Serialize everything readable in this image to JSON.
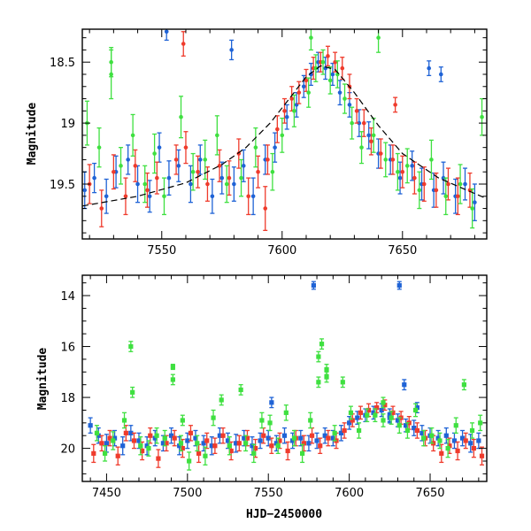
{
  "chart_data": [
    {
      "type": "scatter",
      "panel": "top",
      "xlabel": "",
      "ylabel": "Magnitude",
      "xlim": [
        7517,
        7685
      ],
      "ylim": [
        19.95,
        18.23
      ],
      "y_inverted": true,
      "xticks_major": [
        7550,
        7600,
        7650
      ],
      "xtick_labels": [
        "7550",
        "7600",
        "7650"
      ],
      "yticks_major": [
        18.5,
        19,
        19.5
      ],
      "ytick_labels": [
        "18.5",
        "19",
        "19.5"
      ],
      "colors": {
        "blue": "#1f63d6",
        "red": "#ef3b2c",
        "green": "#3fe040",
        "model": "#000000"
      },
      "model_curve": {
        "style": "dashed",
        "x": [
          7517,
          7540,
          7560,
          7575,
          7585,
          7595,
          7603,
          7610,
          7616,
          7622,
          7630,
          7640,
          7650,
          7665,
          7685
        ],
        "y": [
          19.68,
          19.6,
          19.49,
          19.34,
          19.2,
          19.0,
          18.8,
          18.62,
          18.53,
          18.56,
          18.75,
          19.02,
          19.25,
          19.45,
          19.62
        ]
      },
      "series": [
        {
          "color_key": "blue",
          "x": [
            7518,
            7522,
            7527,
            7531,
            7536,
            7540,
            7545,
            7549,
            7553,
            7557,
            7562,
            7566,
            7571,
            7575,
            7580,
            7584,
            7588,
            7593,
            7597,
            7602,
            7606,
            7609,
            7612,
            7615,
            7618,
            7621,
            7624,
            7628,
            7632,
            7636,
            7640,
            7645,
            7649,
            7654,
            7658,
            7663,
            7667,
            7672,
            7676,
            7680,
            7552,
            7579,
            7661,
            7666
          ],
          "y": [
            19.55,
            19.45,
            19.6,
            19.4,
            19.3,
            19.5,
            19.6,
            19.2,
            19.45,
            19.35,
            19.5,
            19.3,
            19.6,
            19.45,
            19.5,
            19.35,
            19.6,
            19.3,
            19.2,
            18.95,
            18.85,
            18.7,
            18.6,
            18.5,
            18.55,
            18.6,
            18.75,
            18.85,
            19.0,
            19.1,
            19.25,
            19.3,
            19.45,
            19.35,
            19.5,
            19.55,
            19.45,
            19.6,
            19.5,
            19.65,
            18.25,
            18.4,
            18.55,
            18.6
          ],
          "err": [
            0.15,
            0.12,
            0.14,
            0.13,
            0.12,
            0.15,
            0.13,
            0.12,
            0.14,
            0.13,
            0.15,
            0.12,
            0.14,
            0.13,
            0.14,
            0.13,
            0.15,
            0.12,
            0.12,
            0.1,
            0.1,
            0.09,
            0.09,
            0.08,
            0.09,
            0.09,
            0.1,
            0.1,
            0.11,
            0.11,
            0.12,
            0.12,
            0.13,
            0.12,
            0.13,
            0.14,
            0.13,
            0.14,
            0.13,
            0.15,
            0.07,
            0.08,
            0.06,
            0.06
          ]
        },
        {
          "color_key": "red",
          "x": [
            7520,
            7525,
            7530,
            7535,
            7539,
            7544,
            7548,
            7556,
            7560,
            7565,
            7569,
            7574,
            7578,
            7582,
            7586,
            7590,
            7594,
            7598,
            7601,
            7604,
            7607,
            7610,
            7613,
            7616,
            7619,
            7622,
            7625,
            7628,
            7631,
            7634,
            7637,
            7641,
            7646,
            7650,
            7655,
            7659,
            7664,
            7669,
            7673,
            7678,
            7559,
            7593,
            7647
          ],
          "y": [
            19.5,
            19.7,
            19.4,
            19.6,
            19.35,
            19.55,
            19.45,
            19.3,
            19.2,
            19.4,
            19.5,
            19.35,
            19.45,
            19.25,
            19.6,
            19.4,
            19.3,
            19.05,
            18.9,
            18.8,
            18.75,
            18.65,
            18.55,
            18.5,
            18.45,
            18.5,
            18.55,
            18.7,
            18.9,
            19.0,
            19.15,
            19.25,
            19.3,
            19.4,
            19.45,
            19.5,
            19.55,
            19.5,
            19.6,
            19.55,
            18.35,
            19.7,
            18.85
          ],
          "err": [
            0.16,
            0.15,
            0.14,
            0.15,
            0.13,
            0.14,
            0.13,
            0.12,
            0.13,
            0.13,
            0.14,
            0.13,
            0.14,
            0.12,
            0.15,
            0.13,
            0.12,
            0.11,
            0.1,
            0.1,
            0.09,
            0.09,
            0.09,
            0.08,
            0.08,
            0.08,
            0.09,
            0.1,
            0.1,
            0.11,
            0.11,
            0.12,
            0.12,
            0.13,
            0.13,
            0.14,
            0.14,
            0.13,
            0.15,
            0.14,
            0.1,
            0.18,
            0.06
          ]
        },
        {
          "color_key": "green",
          "x": [
            7519,
            7524,
            7529,
            7533,
            7538,
            7543,
            7547,
            7551,
            7558,
            7563,
            7568,
            7573,
            7577,
            7583,
            7589,
            7596,
            7600,
            7605,
            7611,
            7614,
            7617,
            7620,
            7623,
            7626,
            7629,
            7633,
            7638,
            7643,
            7648,
            7652,
            7657,
            7662,
            7668,
            7674,
            7679,
            7683,
            7529,
            7640,
            7612
          ],
          "y": [
            19.0,
            19.2,
            18.6,
            19.35,
            19.1,
            19.5,
            19.25,
            19.6,
            18.95,
            19.4,
            19.3,
            19.1,
            19.5,
            19.45,
            19.2,
            19.4,
            19.1,
            18.9,
            18.75,
            18.55,
            18.5,
            18.65,
            18.6,
            18.8,
            19.0,
            19.2,
            19.1,
            19.3,
            19.4,
            19.35,
            19.55,
            19.3,
            19.6,
            19.5,
            19.7,
            18.95,
            18.5,
            18.3,
            18.3
          ],
          "err": [
            0.18,
            0.16,
            0.2,
            0.15,
            0.17,
            0.15,
            0.16,
            0.15,
            0.17,
            0.15,
            0.16,
            0.16,
            0.15,
            0.15,
            0.16,
            0.15,
            0.14,
            0.13,
            0.12,
            0.11,
            0.1,
            0.11,
            0.11,
            0.12,
            0.13,
            0.13,
            0.14,
            0.14,
            0.15,
            0.14,
            0.15,
            0.16,
            0.15,
            0.16,
            0.16,
            0.15,
            0.12,
            0.12,
            0.1
          ]
        }
      ]
    },
    {
      "type": "scatter",
      "panel": "bottom",
      "xlabel": "HJD−2450000",
      "ylabel": "Magnitude",
      "xlim": [
        7435,
        7685
      ],
      "ylim": [
        21.3,
        13.2
      ],
      "y_inverted": true,
      "xticks_major": [
        7450,
        7500,
        7550,
        7600,
        7650
      ],
      "xtick_labels": [
        "7450",
        "7500",
        "7550",
        "7600",
        "7650"
      ],
      "yticks_major": [
        14,
        16,
        18,
        20
      ],
      "ytick_labels": [
        "14",
        "16",
        "18",
        "20"
      ],
      "colors": {
        "blue": "#1f63d6",
        "red": "#ef3b2c",
        "green": "#3fe040"
      },
      "series": [
        {
          "color_key": "blue",
          "x": [
            7440,
            7445,
            7450,
            7455,
            7460,
            7465,
            7470,
            7475,
            7480,
            7485,
            7490,
            7495,
            7500,
            7505,
            7510,
            7515,
            7520,
            7525,
            7530,
            7535,
            7540,
            7545,
            7550,
            7555,
            7560,
            7565,
            7570,
            7575,
            7580,
            7585,
            7590,
            7595,
            7600,
            7605,
            7610,
            7615,
            7620,
            7625,
            7630,
            7635,
            7640,
            7645,
            7650,
            7655,
            7660,
            7665,
            7670,
            7675,
            7680,
            7578,
            7631,
            7552,
            7625,
            7634,
            7642
          ],
          "y": [
            19.1,
            19.5,
            19.8,
            19.6,
            19.9,
            19.4,
            19.7,
            19.9,
            19.6,
            19.8,
            19.5,
            19.9,
            19.7,
            19.6,
            19.8,
            19.9,
            19.5,
            19.7,
            19.8,
            19.6,
            19.9,
            19.7,
            19.6,
            19.8,
            19.5,
            19.7,
            19.6,
            19.8,
            19.7,
            19.5,
            19.6,
            19.4,
            19.0,
            18.8,
            18.7,
            18.6,
            18.5,
            18.7,
            18.9,
            19.1,
            19.2,
            19.4,
            19.5,
            19.6,
            19.5,
            19.7,
            19.6,
            19.8,
            19.7,
            13.6,
            13.6,
            18.2,
            18.8,
            17.5,
            18.4
          ],
          "err": [
            0.3,
            0.3,
            0.35,
            0.3,
            0.35,
            0.3,
            0.3,
            0.35,
            0.3,
            0.3,
            0.3,
            0.35,
            0.3,
            0.3,
            0.3,
            0.35,
            0.3,
            0.3,
            0.35,
            0.3,
            0.35,
            0.3,
            0.3,
            0.3,
            0.3,
            0.3,
            0.3,
            0.3,
            0.3,
            0.3,
            0.3,
            0.3,
            0.25,
            0.25,
            0.25,
            0.25,
            0.25,
            0.25,
            0.25,
            0.25,
            0.3,
            0.3,
            0.3,
            0.3,
            0.3,
            0.3,
            0.3,
            0.35,
            0.3,
            0.15,
            0.15,
            0.2,
            0.2,
            0.2,
            0.2
          ]
        },
        {
          "color_key": "red",
          "x": [
            7442,
            7447,
            7452,
            7457,
            7462,
            7467,
            7472,
            7477,
            7482,
            7487,
            7492,
            7497,
            7502,
            7507,
            7512,
            7517,
            7522,
            7527,
            7532,
            7537,
            7542,
            7547,
            7552,
            7557,
            7562,
            7567,
            7572,
            7577,
            7582,
            7587,
            7592,
            7597,
            7602,
            7607,
            7612,
            7617,
            7622,
            7627,
            7632,
            7637,
            7642,
            7647,
            7652,
            7657,
            7662,
            7667,
            7672,
            7677,
            7682
          ],
          "y": [
            20.2,
            19.8,
            19.6,
            20.3,
            19.4,
            19.7,
            20.1,
            19.5,
            20.4,
            19.8,
            19.6,
            20.0,
            19.4,
            20.2,
            19.7,
            19.9,
            19.5,
            20.1,
            19.8,
            19.6,
            20.0,
            19.5,
            19.9,
            19.7,
            20.1,
            19.6,
            19.8,
            19.5,
            19.9,
            19.6,
            19.7,
            19.3,
            18.9,
            18.6,
            18.5,
            18.4,
            18.3,
            18.6,
            18.8,
            19.0,
            19.3,
            19.6,
            19.8,
            20.2,
            19.9,
            20.1,
            19.7,
            20.0,
            20.3
          ],
          "err": [
            0.35,
            0.3,
            0.3,
            0.35,
            0.3,
            0.3,
            0.35,
            0.3,
            0.35,
            0.3,
            0.3,
            0.35,
            0.3,
            0.35,
            0.3,
            0.3,
            0.3,
            0.35,
            0.3,
            0.3,
            0.35,
            0.3,
            0.3,
            0.3,
            0.35,
            0.3,
            0.3,
            0.3,
            0.3,
            0.3,
            0.3,
            0.3,
            0.25,
            0.25,
            0.25,
            0.2,
            0.2,
            0.25,
            0.25,
            0.25,
            0.3,
            0.3,
            0.3,
            0.35,
            0.3,
            0.35,
            0.3,
            0.35,
            0.35
          ]
        },
        {
          "color_key": "green",
          "x": [
            7444,
            7449,
            7454,
            7461,
            7465,
            7466,
            7471,
            7476,
            7481,
            7486,
            7491,
            7496,
            7501,
            7506,
            7511,
            7516,
            7521,
            7526,
            7533,
            7536,
            7541,
            7546,
            7551,
            7556,
            7561,
            7566,
            7571,
            7576,
            7581,
            7583,
            7586,
            7591,
            7596,
            7601,
            7606,
            7611,
            7616,
            7621,
            7626,
            7631,
            7636,
            7641,
            7646,
            7651,
            7656,
            7661,
            7666,
            7671,
            7676,
            7681,
            7491,
            7497,
            7581,
            7586,
            7621
          ],
          "y": [
            19.4,
            20.2,
            19.7,
            18.9,
            16.0,
            17.8,
            19.9,
            20.0,
            19.5,
            19.6,
            17.3,
            19.8,
            20.5,
            19.8,
            20.3,
            18.8,
            18.1,
            19.9,
            17.7,
            19.8,
            20.2,
            18.9,
            19.0,
            19.9,
            18.6,
            19.6,
            20.2,
            18.9,
            17.4,
            15.9,
            16.9,
            19.4,
            17.4,
            18.6,
            19.3,
            18.7,
            18.7,
            18.9,
            18.8,
            19.1,
            19.3,
            18.5,
            19.6,
            19.5,
            19.7,
            20.0,
            19.1,
            17.5,
            19.3,
            19.0,
            16.8,
            18.9,
            16.4,
            17.2,
            18.2
          ],
          "err": [
            0.3,
            0.3,
            0.35,
            0.3,
            0.2,
            0.2,
            0.35,
            0.3,
            0.3,
            0.3,
            0.2,
            0.3,
            0.35,
            0.3,
            0.35,
            0.3,
            0.2,
            0.35,
            0.2,
            0.3,
            0.35,
            0.3,
            0.3,
            0.3,
            0.3,
            0.3,
            0.35,
            0.3,
            0.2,
            0.2,
            0.2,
            0.3,
            0.2,
            0.25,
            0.3,
            0.25,
            0.25,
            0.25,
            0.25,
            0.3,
            0.3,
            0.25,
            0.3,
            0.3,
            0.3,
            0.35,
            0.3,
            0.2,
            0.3,
            0.3,
            0.1,
            0.2,
            0.2,
            0.2,
            0.2
          ]
        }
      ]
    }
  ]
}
